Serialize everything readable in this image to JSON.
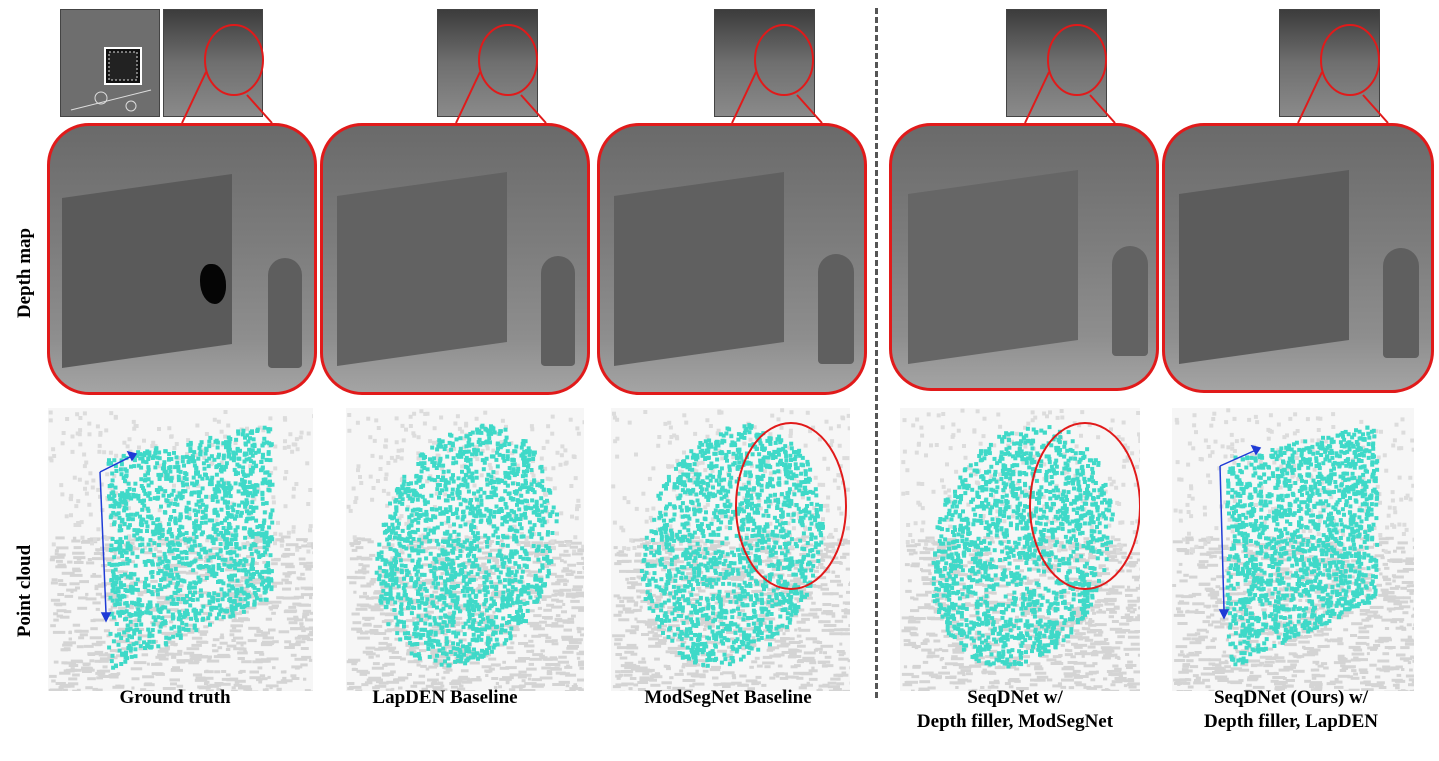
{
  "row_labels": {
    "depth_map": "Depth map",
    "point_cloud": "Point cloud"
  },
  "columns": [
    {
      "id": "gt",
      "caption": "Ground truth"
    },
    {
      "id": "lapden",
      "caption": "LapDEN Baseline"
    },
    {
      "id": "modsegnet",
      "caption": "ModSegNet Baseline"
    },
    {
      "id": "seqdnet_mod",
      "caption": "SeqDNet  w/\nDepth filler, ModSegNet"
    },
    {
      "id": "seqdnet_lap",
      "caption": "SeqDNet  (Ours) w/\nDepth filler,  LapDEN"
    }
  ],
  "colors": {
    "highlight": "#e11a1a",
    "point_cloud": "#3fd9c8",
    "axis": "#1f3bd6",
    "divider": "#555555"
  }
}
